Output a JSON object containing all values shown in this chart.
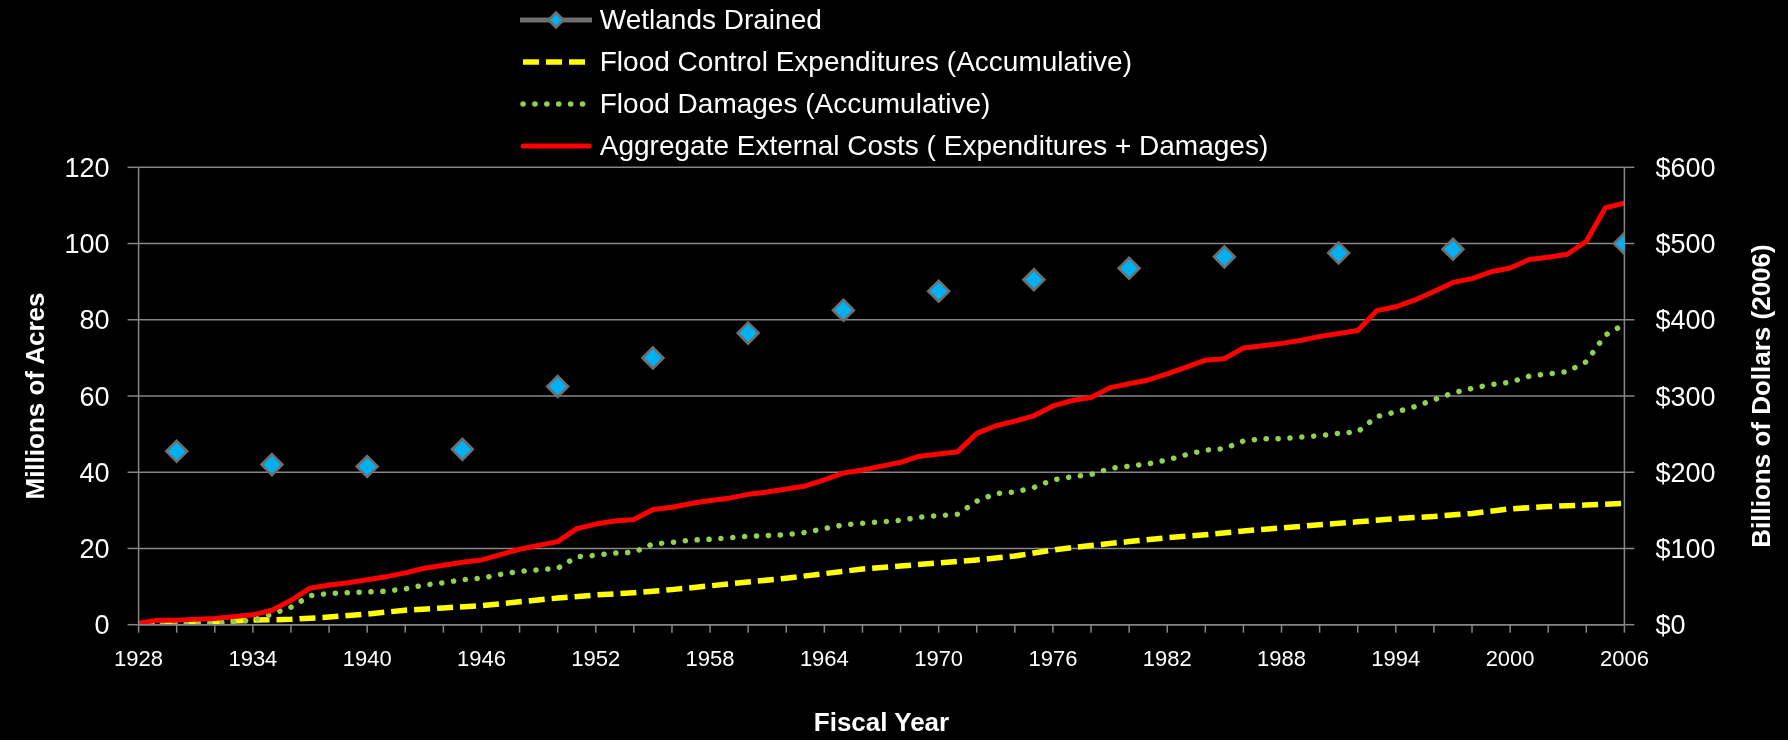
{
  "chart_data": {
    "type": "line",
    "xlabel": "Fiscal Year",
    "ylabel": "Millions of Acres",
    "y2label": "Billions of Dollars (2006)",
    "xlim": [
      1928,
      2006
    ],
    "xticks": [
      1928,
      {
        "value": 1930,
        "label": null
      },
      {
        "value": 1932,
        "label": null
      },
      1934,
      {
        "value": 1936,
        "label": null
      },
      {
        "value": 1938,
        "label": null
      },
      1940,
      {
        "value": 1942,
        "label": null
      },
      {
        "value": 1944,
        "label": null
      },
      1946,
      {
        "value": 1948,
        "label": null
      },
      {
        "value": 1950,
        "label": null
      },
      1952,
      {
        "value": 1954,
        "label": null
      },
      {
        "value": 1956,
        "label": null
      },
      1958,
      {
        "value": 1960,
        "label": null
      },
      {
        "value": 1962,
        "label": null
      },
      1964,
      {
        "value": 1966,
        "label": null
      },
      {
        "value": 1968,
        "label": null
      },
      1970,
      {
        "value": 1972,
        "label": null
      },
      {
        "value": 1974,
        "label": null
      },
      1976,
      {
        "value": 1978,
        "label": null
      },
      {
        "value": 1980,
        "label": null
      },
      1982,
      {
        "value": 1984,
        "label": null
      },
      {
        "value": 1986,
        "label": null
      },
      1988,
      {
        "value": 1990,
        "label": null
      },
      {
        "value": 1992,
        "label": null
      },
      1994,
      {
        "value": 1996,
        "label": null
      },
      {
        "value": 1998,
        "label": null
      },
      2000,
      {
        "value": 2002,
        "label": null
      },
      {
        "value": 2004,
        "label": null
      },
      2006
    ],
    "ylim": [
      0,
      120
    ],
    "yticks": [
      0,
      20,
      40,
      60,
      80,
      100,
      120
    ],
    "y2lim": [
      0,
      600
    ],
    "y2ticks": [
      {
        "value": 0,
        "label": "$0"
      },
      {
        "value": 100,
        "label": "$100"
      },
      {
        "value": 200,
        "label": "$200"
      },
      {
        "value": 300,
        "label": "$300"
      },
      {
        "value": 400,
        "label": "$400"
      },
      {
        "value": 500,
        "label": "$500"
      },
      {
        "value": 600,
        "label": "$600"
      }
    ],
    "grid": "y",
    "legend": "top",
    "series": [
      {
        "name": "Wetlands Drained",
        "type": "scatter",
        "marker": "diamond",
        "color": "#00b0f0",
        "x": [
          1930,
          1935,
          1940,
          1945,
          1950,
          1955,
          1960,
          1965,
          1970,
          1975,
          1980,
          1985,
          1991,
          1997,
          2006
        ],
        "values": [
          45.5,
          42,
          41.5,
          46,
          62.5,
          70,
          76.5,
          82.5,
          87.5,
          90.5,
          93.5,
          96.5,
          97.5,
          98.5,
          100
        ]
      },
      {
        "name": "Flood Control Expenditures (Accumulative)",
        "axis": "y2",
        "line_style": "dashed",
        "color": "#ffff00",
        "x": [
          1928,
          1930,
          1934,
          1936,
          1938,
          1940,
          1942,
          1944,
          1946,
          1948,
          1950,
          1952,
          1954,
          1956,
          1958,
          1960,
          1962,
          1964,
          1966,
          1968,
          1970,
          1972,
          1974,
          1976,
          1978,
          1980,
          1982,
          1984,
          1986,
          1988,
          1990,
          1992,
          1994,
          1996,
          1998,
          2000,
          2002,
          2004,
          2006
        ],
        "values": [
          0,
          2,
          6,
          7,
          10,
          14,
          19,
          22,
          25,
          30,
          35,
          39,
          42,
          46,
          51,
          56,
          61,
          67,
          73,
          77,
          81,
          85,
          90,
          98,
          104,
          109,
          114,
          118,
          123,
          127,
          131,
          135,
          139,
          142,
          146,
          152,
          155,
          157,
          159
        ]
      },
      {
        "name": "Flood Damages (Accumulative)",
        "axis": "y2",
        "line_style": "dotted",
        "color": "#92d050",
        "x": [
          1928,
          1930,
          1932,
          1934,
          1935,
          1936,
          1937,
          1938,
          1939,
          1940,
          1941,
          1942,
          1943,
          1944,
          1945,
          1946,
          1947,
          1948,
          1949,
          1950,
          1951,
          1952,
          1953,
          1954,
          1955,
          1956,
          1957,
          1958,
          1959,
          1960,
          1961,
          1962,
          1963,
          1964,
          1965,
          1966,
          1967,
          1968,
          1969,
          1970,
          1971,
          1972,
          1973,
          1974,
          1975,
          1976,
          1977,
          1978,
          1979,
          1980,
          1981,
          1982,
          1983,
          1984,
          1985,
          1986,
          1987,
          1988,
          1989,
          1990,
          1991,
          1992,
          1993,
          1994,
          1995,
          1996,
          1997,
          1998,
          1999,
          2000,
          2001,
          2002,
          2003,
          2004,
          2005,
          2006
        ],
        "values": [
          0,
          1,
          2,
          6,
          14,
          23,
          38,
          41,
          42,
          43,
          44,
          47,
          52,
          55,
          59,
          61,
          66,
          70,
          72,
          74,
          89,
          91,
          94,
          95,
          106,
          108,
          111,
          112,
          114,
          116,
          117,
          118,
          121,
          126,
          131,
          133,
          135,
          137,
          141,
          143,
          145,
          162,
          172,
          174,
          180,
          190,
          194,
          197,
          205,
          208,
          211,
          216,
          223,
          229,
          231,
          241,
          244,
          244,
          246,
          248,
          251,
          253,
          273,
          279,
          286,
          295,
          304,
          310,
          315,
          318,
          326,
          329,
          332,
          345,
          380,
          394
        ]
      },
      {
        "name": "Aggregate External Costs ( Expenditures + Damages)",
        "axis": "y2",
        "line_style": "solid",
        "color": "#ff0000",
        "x": [
          1928,
          1929,
          1930,
          1932,
          1934,
          1935,
          1936,
          1937,
          1938,
          1939,
          1940,
          1941,
          1942,
          1943,
          1944,
          1945,
          1946,
          1947,
          1948,
          1949,
          1950,
          1951,
          1952,
          1953,
          1954,
          1955,
          1956,
          1957,
          1958,
          1959,
          1960,
          1961,
          1962,
          1963,
          1964,
          1965,
          1966,
          1967,
          1968,
          1969,
          1970,
          1971,
          1972,
          1973,
          1974,
          1975,
          1976,
          1977,
          1978,
          1979,
          1980,
          1981,
          1982,
          1983,
          1984,
          1985,
          1986,
          1987,
          1988,
          1989,
          1990,
          1991,
          1992,
          1993,
          1994,
          1995,
          1996,
          1997,
          1998,
          1999,
          2000,
          2001,
          2002,
          2003,
          2004,
          2005,
          2006
        ],
        "values": [
          2,
          6,
          6,
          8,
          13,
          19,
          32,
          48,
          52,
          55,
          59,
          63,
          68,
          74,
          78,
          82,
          85,
          92,
          99,
          104,
          109,
          126,
          132,
          136,
          138,
          151,
          154,
          159,
          163,
          166,
          171,
          174,
          178,
          182,
          190,
          199,
          203,
          208,
          213,
          221,
          224,
          227,
          251,
          261,
          267,
          274,
          287,
          294,
          298,
          311,
          316,
          321,
          329,
          338,
          347,
          349,
          363,
          366,
          369,
          373,
          378,
          382,
          386,
          412,
          417,
          426,
          437,
          449,
          454,
          463,
          468,
          479,
          482,
          486,
          503,
          547,
          553
        ]
      }
    ]
  }
}
